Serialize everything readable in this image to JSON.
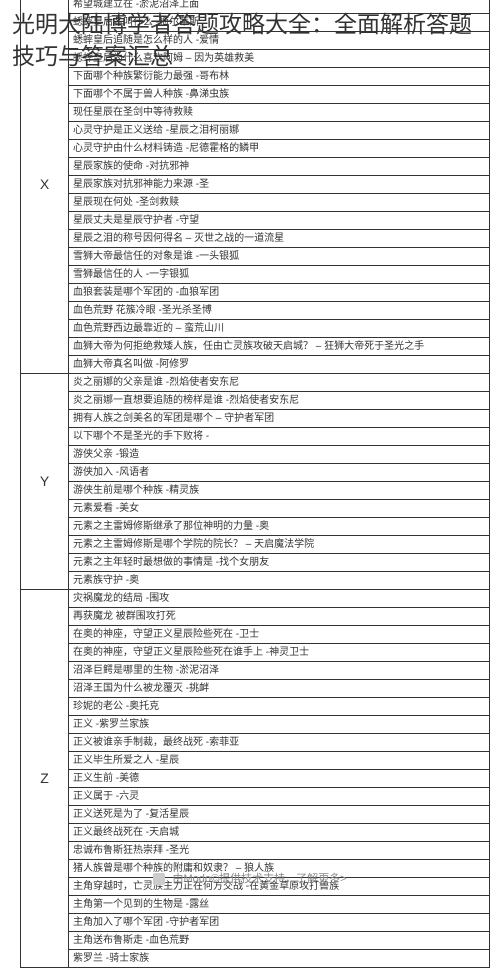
{
  "title": "光明大陆博学者答题攻略大全：全面解析答题技巧与答案汇总",
  "colors": {
    "text": "#333333",
    "border": "#333333",
    "background": "#ffffff",
    "footer": "#888888"
  },
  "sections": [
    {
      "category": "X",
      "rows": [
        "希望城建立在 -淤泥沼泽上面",
        "蟋蟀皇后名叫什么 -梅尔蒂斯",
        "蟋蟀皇后追随是怎么样的人 -爱情",
        "蟋蟀皇后为什么喜欢阿姆  – 因为英雄救美",
        "下面哪个种族繁衍能力最强  -哥布林",
        "下面哪个不属于兽人种族 -鼻涕虫族",
        "现任星辰在圣剑中等待救赎",
        "心灵守护是正义送给 -星辰之泪柯丽娜",
        "心灵守护由什么材料铸造 -尼德霍格的鳞甲",
        "星辰家族的使命 -对抗邪神",
        "星辰家族对抗邪神能力来源 -圣",
        "星辰现在何处 -圣剑救赎",
        "星辰丈夫是星辰守护者 -守望",
        "星辰之泪的称号因何得名  – 灭世之战的一道流星",
        "雪狮大帝最信任的对象是谁 -一头银狐",
        "雪狮最信任的人 -一字银狐",
        "血狼套装是哪个军团的 -血狼军团",
        "血色荒野 花簇冷眼 -圣光杀圣博",
        "血色荒野西边最靠近的 – 蛮荒山川",
        "血狮大帝为何拒绝救矮人族，任由亡灵族攻破天启城？ – 狂狮大帝死于圣光之手",
        "血狮大帝真名叫做 -阿修罗"
      ]
    },
    {
      "category": "Y",
      "rows": [
        "炎之丽娜的父亲是谁 -烈焰使者安东尼",
        "炎之丽娜一直想要追随的榜样是谁 -烈焰使者安东尼",
        "拥有人族之剑美名的军团是哪个  – 守护者军团",
        "以下哪个不是圣光的手下败将 -",
        "游侠父亲 -锻造",
        "游侠加入 -风语者",
        "游侠生前是哪个种族 -精灵族",
        "元素爱看 -美女",
        "元素之主雷姆修斯继承了那位神明的力量  -奥",
        "元素之主雷姆修斯是哪个学院的院长？  – 天启魔法学院",
        "元素之主年轻时最想做的事情是 -找个女朋友",
        "元素族守护 -奥"
      ]
    },
    {
      "category": "Z",
      "rows": [
        "灾祸魔龙的结局  -围攻",
        "再获魔龙 被群围攻打死",
        "在奥的神座，守望正义星辰险些死在 -卫士",
        "在奥的神座，守望正义星辰险些死在谁手上 -神灵卫士",
        "沼泽巨鳄是哪里的生物 -淤泥沼泽",
        "沼泽王国为什么被龙覆灭 -挑衅",
        "珍妮的老公 -奥托克",
        "正义 -紫罗兰家族",
        "正义被谁亲手制裁，最终战死 -索菲亚",
        "正义毕生所爱之人 -星辰",
        "正义生前 -美德",
        "正义属于 -六灵",
        "正义送死是为了 -复活星辰",
        "正义最终战死在 -天启城",
        "忠诚布鲁斯狂热崇拜 -圣光",
        "猪人族曾是哪个种族的附庸和奴隶？ – 狼人族",
        "主角穿越时，亡灵族主力正在何方交战 -在黄金草原攻打兽族",
        "主角第一个见到的生物是 -露丝",
        "主角加入了哪个军团 -守护者军团",
        "主角送布鲁斯走 -血色荒野",
        "紫罗兰 -骑士家族"
      ]
    }
  ],
  "footer": "由Modo©提供技术支持，了解更多>"
}
